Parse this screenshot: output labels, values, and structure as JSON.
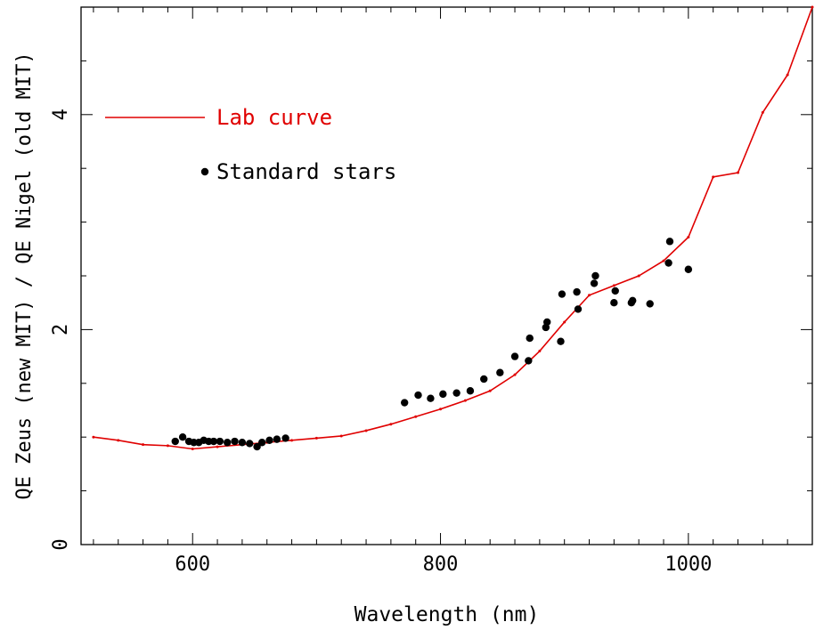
{
  "chart_data": {
    "type": "scatter",
    "xlabel": "Wavelength (nm)",
    "ylabel": "QE Zeus (new MIT) / QE Nigel (old MIT)",
    "xlim": [
      510,
      1100
    ],
    "ylim": [
      0,
      5
    ],
    "xticks": [
      600,
      800,
      1000
    ],
    "yticks": [
      0,
      2,
      4
    ],
    "grid": false,
    "legend_position": "top-left",
    "series": [
      {
        "name": "Lab curve",
        "style": "line",
        "color": "#e00000",
        "x": [
          520,
          540,
          560,
          580,
          600,
          620,
          640,
          660,
          680,
          700,
          720,
          740,
          760,
          780,
          800,
          820,
          840,
          860,
          880,
          900,
          920,
          940,
          960,
          980,
          1000,
          1020,
          1040,
          1060,
          1080,
          1100
        ],
        "y": [
          1.0,
          0.97,
          0.93,
          0.92,
          0.89,
          0.91,
          0.93,
          0.95,
          0.97,
          0.99,
          1.01,
          1.06,
          1.12,
          1.19,
          1.26,
          1.34,
          1.43,
          1.58,
          1.8,
          2.07,
          2.32,
          2.41,
          2.5,
          2.64,
          2.86,
          3.42,
          3.46,
          4.02,
          4.37,
          5.0
        ]
      },
      {
        "name": "Standard stars",
        "style": "points",
        "color": "#000000",
        "x": [
          586,
          592,
          597,
          601,
          605,
          609,
          613,
          617,
          622,
          628,
          634,
          640,
          646,
          652,
          656,
          662,
          668,
          675,
          771,
          782,
          792,
          802,
          813,
          824,
          835,
          848,
          860,
          871,
          872,
          885,
          886,
          897,
          898,
          910,
          911,
          924,
          925,
          940,
          941,
          954,
          955,
          969,
          984,
          985,
          1000
        ],
        "y": [
          0.96,
          1.0,
          0.96,
          0.95,
          0.95,
          0.97,
          0.96,
          0.96,
          0.96,
          0.95,
          0.96,
          0.95,
          0.94,
          0.91,
          0.95,
          0.97,
          0.98,
          0.99,
          1.32,
          1.39,
          1.36,
          1.4,
          1.41,
          1.43,
          1.54,
          1.6,
          1.75,
          1.71,
          1.92,
          2.02,
          2.07,
          1.89,
          2.33,
          2.35,
          2.19,
          2.43,
          2.5,
          2.25,
          2.36,
          2.25,
          2.27,
          2.24,
          2.62,
          2.82,
          2.56
        ]
      }
    ]
  }
}
